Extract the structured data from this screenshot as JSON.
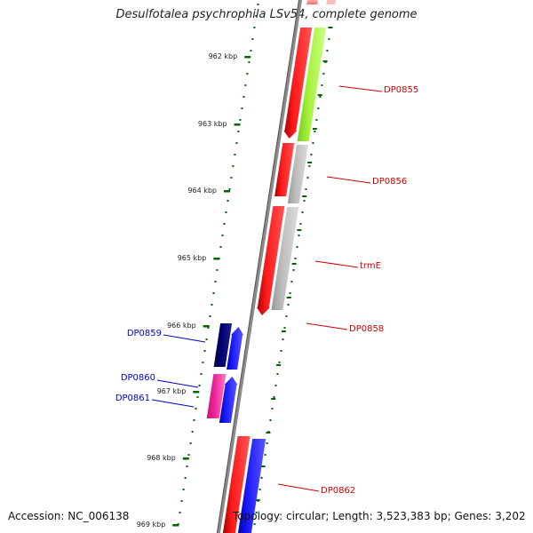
{
  "title": "Desulfotalea psychrophila LSv54, complete genome",
  "accession": "Accession: NC_006138",
  "topology": "Topology: circular; Length: 3,523,383 bp; Genes: 3,202",
  "ticks": [
    {
      "label": "962 kbp"
    },
    {
      "label": "963 kbp"
    },
    {
      "label": "964 kbp"
    },
    {
      "label": "965 kbp"
    },
    {
      "label": "966 kbp"
    },
    {
      "label": "967 kbp"
    },
    {
      "label": "968 kbp"
    },
    {
      "label": "969 kbp"
    }
  ],
  "gene_labels": [
    {
      "text": "DP0855",
      "color": "#cc0000"
    },
    {
      "text": "DP0856",
      "color": "#cc0000"
    },
    {
      "text": "trmE",
      "color": "#cc0000"
    },
    {
      "text": "DP0858",
      "color": "#cc0000"
    },
    {
      "text": "DP0859",
      "color": "#0000cc"
    },
    {
      "text": "DP0860",
      "color": "#0000cc"
    },
    {
      "text": "DP0861",
      "color": "#0000cc"
    },
    {
      "text": "DP0862",
      "color": "#cc0000"
    }
  ],
  "colors": {
    "forward_cds": "#ee0000",
    "reverse_cds": "#0000ee",
    "cog_green": "#99ee33",
    "cog_gray": "#bbbbbb",
    "cog_navy": "#000066",
    "cog_pink": "#ee2299",
    "tick_green": "#006600",
    "backbone": "#777777"
  }
}
